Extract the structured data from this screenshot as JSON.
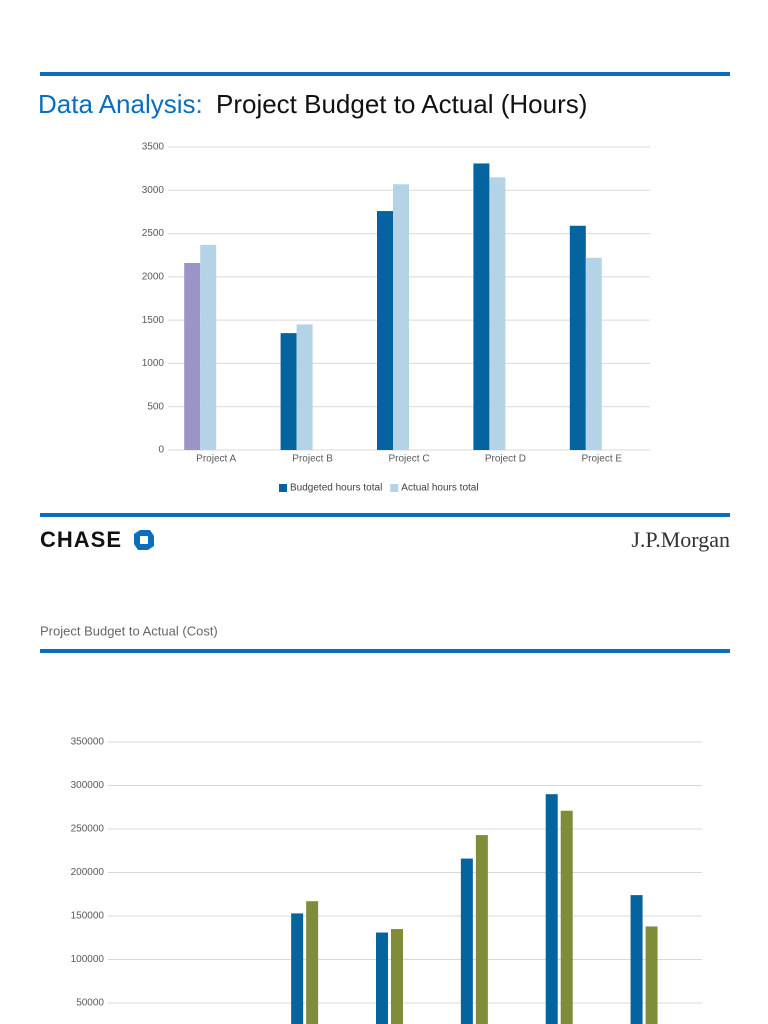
{
  "header": {
    "prefix": "Data Analysis:",
    "title": "Project Budget to Actual (Hours)"
  },
  "logos": {
    "left": "CHASE",
    "right": "J.P.Morgan"
  },
  "section_title": "Project Budget to Actual (Cost)",
  "chart_data": [
    {
      "type": "bar",
      "categories": [
        "Project A",
        "Project B",
        "Project C",
        "Project D",
        "Project E"
      ],
      "series": [
        {
          "name": "Budgeted hours total",
          "color": "#0563a0",
          "colors": [
            "#9b94c6",
            "#0563a0",
            "#0563a0",
            "#0563a0",
            "#0563a0"
          ],
          "values": [
            2160,
            1350,
            2760,
            3310,
            2590
          ]
        },
        {
          "name": "Actual hours total",
          "color": "#b4d3e7",
          "values": [
            2370,
            1450,
            3070,
            3150,
            2220
          ]
        }
      ],
      "ylim": [
        0,
        3500
      ],
      "yticks": [
        0,
        500,
        1000,
        1500,
        2000,
        2500,
        3000,
        3500
      ],
      "grid": true,
      "legend": "bottom"
    },
    {
      "type": "bar",
      "categories": [
        null,
        null,
        null,
        null,
        null,
        null,
        null
      ],
      "series": [
        {
          "color": "#0563a0",
          "values": [
            null,
            null,
            153000,
            131000,
            216000,
            290000,
            174000
          ]
        },
        {
          "color": "#7f8c3a",
          "values": [
            null,
            null,
            167000,
            135000,
            243000,
            271000,
            138000
          ]
        }
      ],
      "ylim": [
        0,
        350000
      ],
      "yticks": [
        50000,
        100000,
        150000,
        200000,
        250000,
        300000,
        350000
      ],
      "grid": true
    }
  ]
}
